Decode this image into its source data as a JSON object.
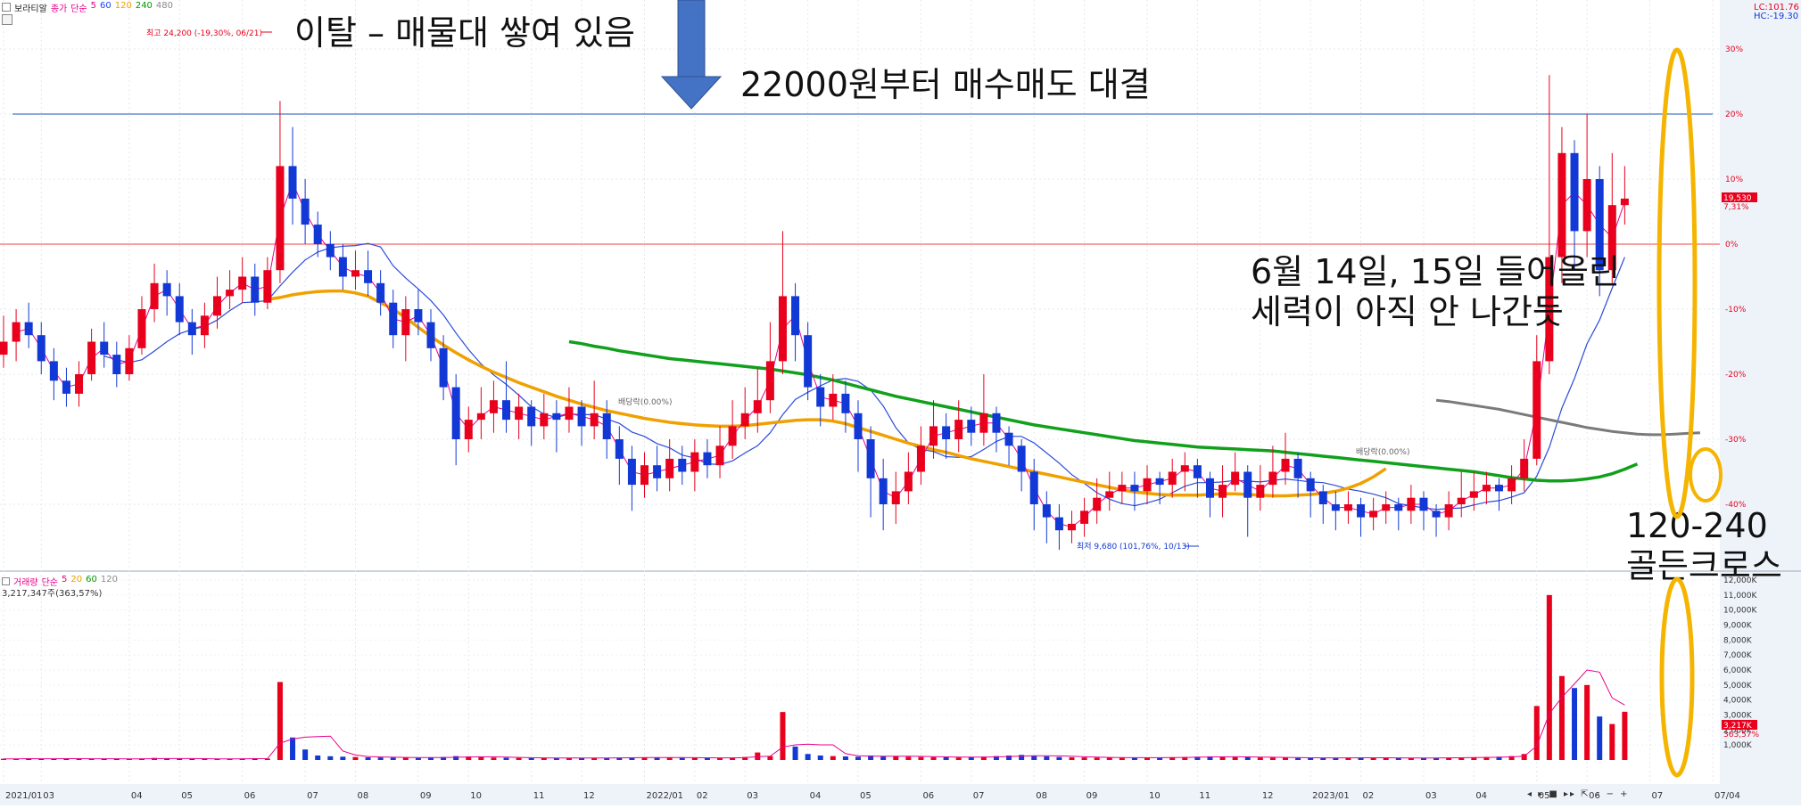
{
  "header": {
    "stock_name": "보라티알",
    "price_indicators": [
      {
        "text": "종가",
        "color": "#e8008a"
      },
      {
        "text": "단순",
        "color": "#e8008a"
      },
      {
        "text": "5",
        "color": "#e8008a"
      },
      {
        "text": "60",
        "color": "#1a43ff"
      },
      {
        "text": "120",
        "color": "#f0a000"
      },
      {
        "text": "240",
        "color": "#009a00"
      },
      {
        "text": "480",
        "color": "#8a8a8a"
      }
    ],
    "volume_indicators": [
      {
        "text": "거래량",
        "color": "#e8008a"
      },
      {
        "text": "단순",
        "color": "#e8008a"
      },
      {
        "text": "5",
        "color": "#e8008a"
      },
      {
        "text": "20",
        "color": "#f0a000"
      },
      {
        "text": "60",
        "color": "#009a00"
      },
      {
        "text": "120",
        "color": "#8a8a8a"
      }
    ],
    "volume_value": "3,217,347주(363,57%)",
    "lc_label": "LC:101.76",
    "hc_label": "HC:-19.30"
  },
  "annotations": {
    "top_left": "이탈 – 매물대 쌓여 있음",
    "arrow_text": "22000원부터 매수매도 대결",
    "middle_line1": "6월 14일, 15일 들어올린",
    "middle_line2": "세력이 아직 안 나간듯",
    "cross_line1": "120-240",
    "cross_line2": "골든크로스"
  },
  "markers": {
    "high": "최고 24,200 (-19,30%, 06/21)",
    "low": "최저 9,680 (101,76%, 10/13)",
    "dividend1": "배당락(0.00%)",
    "dividend2": "배당락(0.00%)"
  },
  "current": {
    "price_tag": "19,530",
    "pct_tag": "7,31%",
    "vol_tag": "3,217K",
    "vol_pct": "363,57%"
  },
  "colors": {
    "up": "#e8001c",
    "down": "#1238d6",
    "ma5": "#e8008a",
    "ma60": "#2b4bd9",
    "ma120": "#f0a000",
    "ma240": "#11a01c",
    "ma480": "#7a7a7a",
    "highlight": "#f5b400",
    "arrow": "#4472c4"
  },
  "chart_data": {
    "type": "candlestick",
    "y_axis_label_unit": "%",
    "y_ticks": [
      "30%",
      "20%",
      "10%",
      "0%",
      "-10%",
      "-20%",
      "-30%",
      "-40%"
    ],
    "y_tick_values": [
      30,
      20,
      10,
      0,
      -10,
      -20,
      -30,
      -40
    ],
    "volume_ticks": [
      "12,000K",
      "11,000K",
      "10,000K",
      "9,000K",
      "8,000K",
      "7,000K",
      "6,000K",
      "5,000K",
      "4,000K",
      "3,000K",
      "2,000K",
      "1,000K"
    ],
    "volume_tick_values": [
      12000,
      11000,
      10000,
      9000,
      8000,
      7000,
      6000,
      5000,
      4000,
      3000,
      2000,
      1000
    ],
    "x_ticks": [
      {
        "label": "2021/01",
        "i": 0
      },
      {
        "label": "03",
        "i": 3
      },
      {
        "label": "04",
        "i": 10
      },
      {
        "label": "05",
        "i": 14
      },
      {
        "label": "06",
        "i": 19
      },
      {
        "label": "07",
        "i": 24
      },
      {
        "label": "08",
        "i": 28
      },
      {
        "label": "09",
        "i": 33
      },
      {
        "label": "10",
        "i": 37
      },
      {
        "label": "11",
        "i": 42
      },
      {
        "label": "12",
        "i": 46
      },
      {
        "label": "2022/01",
        "i": 51
      },
      {
        "label": "02",
        "i": 55
      },
      {
        "label": "03",
        "i": 59
      },
      {
        "label": "04",
        "i": 64
      },
      {
        "label": "05",
        "i": 68
      },
      {
        "label": "06",
        "i": 73
      },
      {
        "label": "07",
        "i": 77
      },
      {
        "label": "08",
        "i": 82
      },
      {
        "label": "09",
        "i": 86
      },
      {
        "label": "10",
        "i": 91
      },
      {
        "label": "11",
        "i": 95
      },
      {
        "label": "12",
        "i": 100
      },
      {
        "label": "2023/01",
        "i": 104
      },
      {
        "label": "02",
        "i": 108
      },
      {
        "label": "03",
        "i": 113
      },
      {
        "label": "04",
        "i": 117
      },
      {
        "label": "05",
        "i": 122
      },
      {
        "label": "06",
        "i": 126
      },
      {
        "label": "07",
        "i": 131
      },
      {
        "label": "07/04",
        "i": 136
      }
    ],
    "candles": [
      [
        -17,
        -15,
        -11,
        -19
      ],
      [
        -15,
        -12,
        -10,
        -18
      ],
      [
        -12,
        -14,
        -9,
        -16
      ],
      [
        -14,
        -18,
        -12,
        -20
      ],
      [
        -18,
        -21,
        -16,
        -24
      ],
      [
        -21,
        -23,
        -19,
        -25
      ],
      [
        -23,
        -20,
        -18,
        -25
      ],
      [
        -20,
        -15,
        -13,
        -21
      ],
      [
        -15,
        -17,
        -12,
        -19
      ],
      [
        -17,
        -20,
        -15,
        -22
      ],
      [
        -20,
        -16,
        -14,
        -21
      ],
      [
        -16,
        -10,
        -8,
        -17
      ],
      [
        -10,
        -6,
        -3,
        -12
      ],
      [
        -6,
        -8,
        -4,
        -11
      ],
      [
        -8,
        -12,
        -6,
        -14
      ],
      [
        -12,
        -14,
        -10,
        -17
      ],
      [
        -14,
        -11,
        -9,
        -16
      ],
      [
        -11,
        -8,
        -5,
        -13
      ],
      [
        -8,
        -7,
        -4,
        -10
      ],
      [
        -7,
        -5,
        -2,
        -9
      ],
      [
        -5,
        -9,
        -3,
        -11
      ],
      [
        -9,
        -4,
        -2,
        -10
      ],
      [
        -4,
        12,
        22,
        -6
      ],
      [
        12,
        7,
        18,
        3
      ],
      [
        7,
        3,
        10,
        0
      ],
      [
        3,
        0,
        5,
        -2
      ],
      [
        0,
        -2,
        2,
        -4
      ],
      [
        -2,
        -5,
        0,
        -7
      ],
      [
        -5,
        -4,
        -1,
        -7
      ],
      [
        -4,
        -6,
        -1,
        -8
      ],
      [
        -6,
        -9,
        -4,
        -11
      ],
      [
        -9,
        -14,
        -7,
        -16
      ],
      [
        -14,
        -10,
        -8,
        -18
      ],
      [
        -10,
        -12,
        -7,
        -14
      ],
      [
        -12,
        -16,
        -10,
        -18
      ],
      [
        -16,
        -22,
        -14,
        -24
      ],
      [
        -22,
        -30,
        -20,
        -34
      ],
      [
        -30,
        -27,
        -25,
        -32
      ],
      [
        -27,
        -26,
        -22,
        -30
      ],
      [
        -26,
        -24,
        -21,
        -29
      ],
      [
        -24,
        -27,
        -18,
        -29
      ],
      [
        -27,
        -25,
        -23,
        -30
      ],
      [
        -25,
        -28,
        -24,
        -31
      ],
      [
        -28,
        -26,
        -23,
        -30
      ],
      [
        -26,
        -27,
        -24,
        -32
      ],
      [
        -27,
        -25,
        -22,
        -29
      ],
      [
        -25,
        -28,
        -24,
        -31
      ],
      [
        -28,
        -26,
        -21,
        -30
      ],
      [
        -26,
        -30,
        -24,
        -33
      ],
      [
        -30,
        -33,
        -28,
        -37
      ],
      [
        -33,
        -37,
        -31,
        -41
      ],
      [
        -37,
        -34,
        -32,
        -39
      ],
      [
        -34,
        -36,
        -31,
        -38
      ],
      [
        -36,
        -33,
        -30,
        -38
      ],
      [
        -33,
        -35,
        -31,
        -37
      ],
      [
        -35,
        -32,
        -30,
        -38
      ],
      [
        -32,
        -34,
        -30,
        -36
      ],
      [
        -34,
        -31,
        -28,
        -36
      ],
      [
        -31,
        -28,
        -24,
        -33
      ],
      [
        -28,
        -26,
        -22,
        -30
      ],
      [
        -26,
        -24,
        -19,
        -29
      ],
      [
        -24,
        -18,
        -12,
        -26
      ],
      [
        -18,
        -8,
        2,
        -20
      ],
      [
        -8,
        -14,
        -6,
        -18
      ],
      [
        -14,
        -22,
        -12,
        -24
      ],
      [
        -22,
        -25,
        -20,
        -28
      ],
      [
        -25,
        -23,
        -20,
        -27
      ],
      [
        -23,
        -26,
        -21,
        -29
      ],
      [
        -26,
        -30,
        -24,
        -35
      ],
      [
        -30,
        -36,
        -28,
        -42
      ],
      [
        -36,
        -40,
        -33,
        -44
      ],
      [
        -40,
        -38,
        -35,
        -43
      ],
      [
        -38,
        -35,
        -32,
        -40
      ],
      [
        -35,
        -31,
        -28,
        -37
      ],
      [
        -31,
        -28,
        -24,
        -33
      ],
      [
        -28,
        -30,
        -26,
        -33
      ],
      [
        -30,
        -27,
        -24,
        -32
      ],
      [
        -27,
        -29,
        -25,
        -31
      ],
      [
        -29,
        -26,
        -20,
        -31
      ],
      [
        -26,
        -29,
        -25,
        -32
      ],
      [
        -29,
        -31,
        -28,
        -34
      ],
      [
        -31,
        -35,
        -30,
        -38
      ],
      [
        -35,
        -40,
        -33,
        -44
      ],
      [
        -40,
        -42,
        -38,
        -46
      ],
      [
        -42,
        -44,
        -40,
        -47
      ],
      [
        -44,
        -43,
        -41,
        -46
      ],
      [
        -43,
        -41,
        -39,
        -45
      ],
      [
        -41,
        -39,
        -36,
        -43
      ],
      [
        -39,
        -38,
        -35,
        -41
      ],
      [
        -38,
        -37,
        -35,
        -40
      ],
      [
        -37,
        -38,
        -35,
        -41
      ],
      [
        -38,
        -36,
        -34,
        -40
      ],
      [
        -36,
        -37,
        -35,
        -40
      ],
      [
        -37,
        -35,
        -33,
        -39
      ],
      [
        -35,
        -34,
        -32,
        -38
      ],
      [
        -34,
        -36,
        -33,
        -39
      ],
      [
        -36,
        -39,
        -35,
        -42
      ],
      [
        -39,
        -37,
        -34,
        -42
      ],
      [
        -37,
        -35,
        -32,
        -38
      ],
      [
        -35,
        -39,
        -34,
        -45
      ],
      [
        -39,
        -37,
        -34,
        -41
      ],
      [
        -37,
        -35,
        -31,
        -39
      ],
      [
        -35,
        -33,
        -29,
        -37
      ],
      [
        -33,
        -36,
        -32,
        -39
      ],
      [
        -36,
        -38,
        -35,
        -42
      ],
      [
        -38,
        -40,
        -37,
        -43
      ],
      [
        -40,
        -41,
        -38,
        -44
      ],
      [
        -41,
        -40,
        -38,
        -43
      ],
      [
        -40,
        -42,
        -39,
        -45
      ],
      [
        -42,
        -41,
        -39,
        -44
      ],
      [
        -41,
        -40,
        -38,
        -43
      ],
      [
        -40,
        -41,
        -39,
        -44
      ],
      [
        -41,
        -39,
        -37,
        -43
      ],
      [
        -39,
        -41,
        -38,
        -44
      ],
      [
        -41,
        -42,
        -40,
        -45
      ],
      [
        -42,
        -40,
        -38,
        -44
      ],
      [
        -40,
        -39,
        -35,
        -42
      ],
      [
        -39,
        -38,
        -35,
        -41
      ],
      [
        -38,
        -37,
        -35,
        -40
      ],
      [
        -37,
        -38,
        -36,
        -41
      ],
      [
        -38,
        -36,
        -34,
        -40
      ],
      [
        -36,
        -33,
        -30,
        -38
      ],
      [
        -33,
        -18,
        -14,
        -34
      ],
      [
        -18,
        -2,
        26,
        -20
      ],
      [
        -2,
        14,
        18,
        -6
      ],
      [
        14,
        2,
        16,
        -4
      ],
      [
        2,
        10,
        20,
        -2
      ],
      [
        10,
        -4,
        12,
        -8
      ],
      [
        -4,
        6,
        14,
        -6
      ],
      [
        6,
        7,
        12,
        3
      ]
    ],
    "volume": [
      80,
      60,
      120,
      70,
      90,
      110,
      60,
      80,
      70,
      90,
      60,
      100,
      140,
      90,
      80,
      70,
      60,
      90,
      80,
      100,
      110,
      90,
      5200,
      1500,
      700,
      300,
      250,
      220,
      200,
      180,
      170,
      160,
      150,
      140,
      170,
      200,
      260,
      240,
      180,
      160,
      150,
      140,
      130,
      120,
      140,
      130,
      120,
      150,
      140,
      160,
      180,
      170,
      160,
      150,
      140,
      150,
      130,
      140,
      160,
      200,
      500,
      260,
      3200,
      900,
      400,
      300,
      260,
      240,
      220,
      300,
      260,
      240,
      220,
      200,
      190,
      180,
      170,
      200,
      220,
      260,
      300,
      340,
      280,
      240,
      200,
      180,
      170,
      160,
      150,
      140,
      150,
      160,
      170,
      180,
      200,
      220,
      240,
      210,
      190,
      180,
      170,
      160,
      150,
      140,
      130,
      140,
      150,
      160,
      150,
      140,
      130,
      120,
      130,
      140,
      150,
      160,
      170,
      180,
      200,
      220,
      260,
      400,
      3600,
      11000,
      5600,
      4800,
      5000,
      2900,
      2400,
      3217
    ],
    "ma_lines": [
      {
        "name": "120",
        "from": 21,
        "values": [
          -8.5,
          -8.2,
          -7.8,
          -7.5,
          -7.3,
          -7.2,
          -7.2,
          -7.5,
          -8,
          -9,
          -10,
          -11.3,
          -12.8,
          -14.2,
          -15.5,
          -16.7,
          -17.8,
          -18.8,
          -19.7,
          -20.5,
          -21.3,
          -22,
          -22.7,
          -23.4,
          -24,
          -24.6,
          -25.1,
          -25.6,
          -26,
          -26.4,
          -26.8,
          -27.1,
          -27.4,
          -27.6,
          -27.8,
          -27.9,
          -28,
          -28,
          -27.9,
          -27.7,
          -27.5,
          -27.3,
          -27.1,
          -27,
          -27,
          -27.2,
          -27.6,
          -28.2,
          -28.8,
          -29.4,
          -30,
          -30.6,
          -31.1,
          -31.6,
          -32,
          -32.5,
          -33,
          -33.4,
          -33.8,
          -34.2,
          -34.6,
          -35,
          -35.4,
          -35.8,
          -36.2,
          -36.6,
          -37,
          -37.4,
          -37.8,
          -38.1,
          -38.3,
          -38.5,
          -38.6,
          -38.6,
          -38.6,
          -38.5,
          -38.4,
          -38.4,
          -38.5,
          -38.6,
          -38.7,
          -38.7,
          -38.6,
          -38.5,
          -38.3,
          -38,
          -37.5,
          -36.8,
          -35.8,
          -34.5
        ]
      },
      {
        "name": "240",
        "from": 45,
        "values": [
          -15,
          -15.3,
          -15.7,
          -16,
          -16.4,
          -16.7,
          -17,
          -17.3,
          -17.6,
          -17.8,
          -18,
          -18.2,
          -18.4,
          -18.6,
          -18.8,
          -19,
          -19.2,
          -19.5,
          -19.8,
          -20.1,
          -20.5,
          -20.9,
          -21.4,
          -21.9,
          -22.4,
          -22.9,
          -23.4,
          -23.8,
          -24.2,
          -24.6,
          -25,
          -25.4,
          -25.8,
          -26.2,
          -26.6,
          -27,
          -27.4,
          -27.8,
          -28.1,
          -28.4,
          -28.7,
          -29,
          -29.3,
          -29.6,
          -29.9,
          -30.2,
          -30.4,
          -30.6,
          -30.8,
          -31,
          -31.2,
          -31.3,
          -31.4,
          -31.5,
          -31.6,
          -31.7,
          -31.8,
          -32,
          -32.2,
          -32.4,
          -32.6,
          -32.8,
          -33,
          -33.2,
          -33.4,
          -33.6,
          -33.8,
          -34,
          -34.2,
          -34.4,
          -34.6,
          -34.8,
          -35,
          -35.3,
          -35.6,
          -35.9,
          -36.1,
          -36.3,
          -36.4,
          -36.4,
          -36.3,
          -36.1,
          -35.8,
          -35.3,
          -34.6,
          -33.8
        ]
      },
      {
        "name": "480",
        "from": 114,
        "values": [
          -24,
          -24.2,
          -24.5,
          -24.8,
          -25.1,
          -25.4,
          -25.8,
          -26.2,
          -26.6,
          -27,
          -27.4,
          -27.8,
          -28.2,
          -28.5,
          -28.8,
          -29,
          -29.2,
          -29.3,
          -29.3,
          -29.2,
          -29.1,
          -29
        ]
      }
    ]
  }
}
